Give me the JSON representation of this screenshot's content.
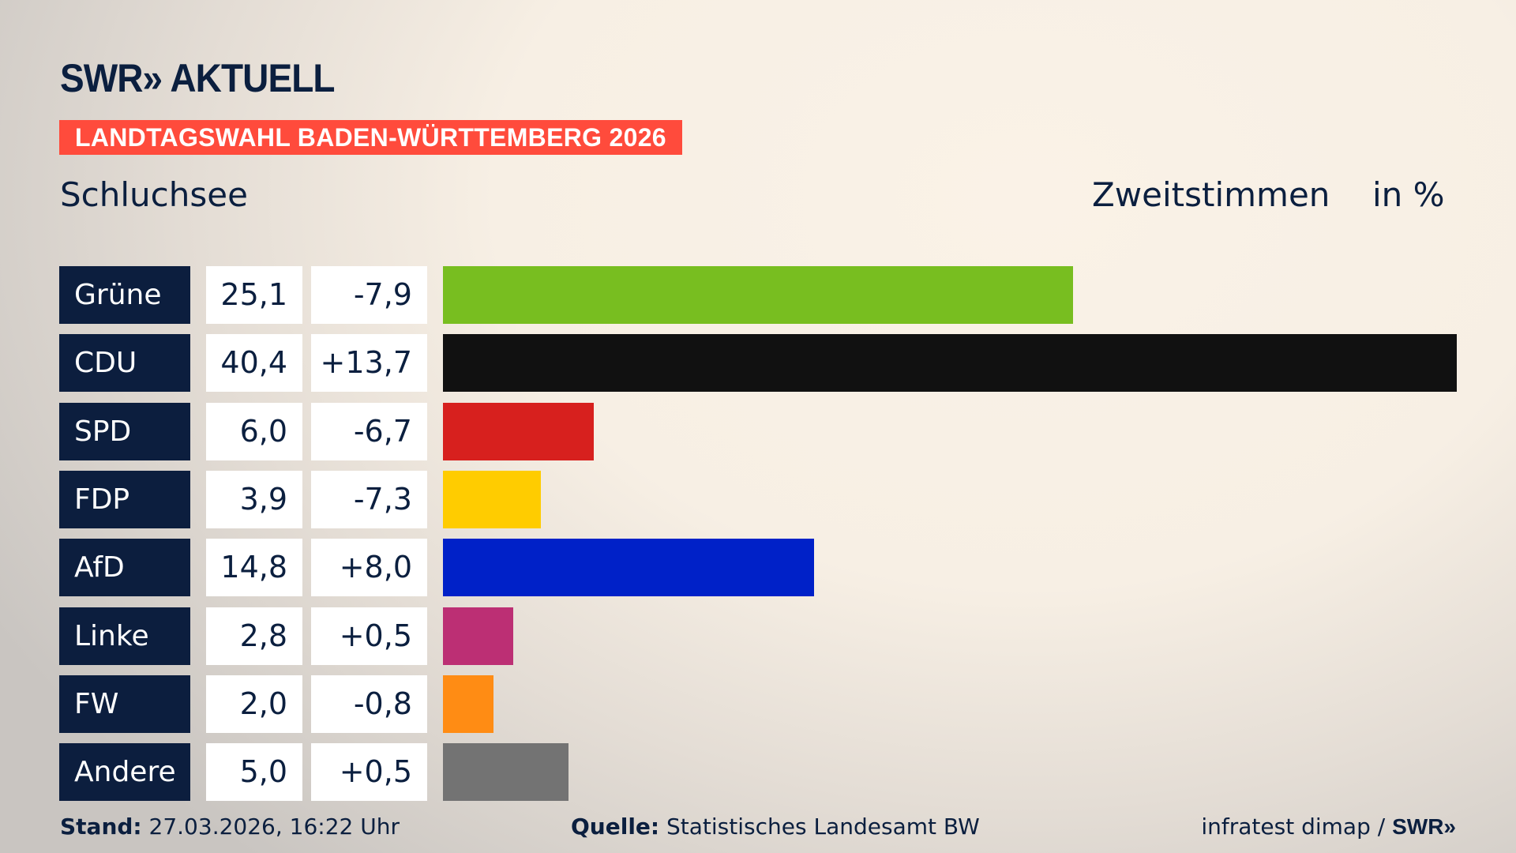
{
  "header": {
    "logo": "SWR» AKTUELL",
    "banner": "LANDTAGSWAHL BADEN-WÜRTTEMBERG 2026",
    "place": "Schluchsee",
    "vote_type": "Zweitstimmen",
    "unit": "in %"
  },
  "chart_data": {
    "type": "bar",
    "orientation": "horizontal",
    "categories": [
      "Grüne",
      "CDU",
      "SPD",
      "FDP",
      "AfD",
      "Linke",
      "FW",
      "Andere"
    ],
    "values": [
      25.1,
      40.4,
      6.0,
      3.9,
      14.8,
      2.8,
      2.0,
      5.0
    ],
    "labels": [
      "25,1",
      "40,4",
      "6,0",
      "3,9",
      "14,8",
      "2,8",
      "2,0",
      "5,0"
    ],
    "changes": [
      -7.9,
      13.7,
      -6.7,
      -7.3,
      8.0,
      0.5,
      -0.8,
      0.5
    ],
    "change_labels": [
      "-7,9",
      "+13,7",
      "-6,7",
      "-7,3",
      "+8,0",
      "+0,5",
      "-0,8",
      "+0,5"
    ],
    "colors": [
      "#78be20",
      "#111111",
      "#d7201e",
      "#ffcc00",
      "#0021c8",
      "#bc2f74",
      "#ff8c14",
      "#737373"
    ],
    "xlim": [
      0,
      40.4
    ]
  },
  "footer": {
    "stand_label": "Stand:",
    "stand_value": "27.03.2026, 16:22 Uhr",
    "source_label": "Quelle:",
    "source_value": "Statistisches Landesamt BW",
    "credit": "infratest dimap / ",
    "credit_logo": "SWR»"
  }
}
